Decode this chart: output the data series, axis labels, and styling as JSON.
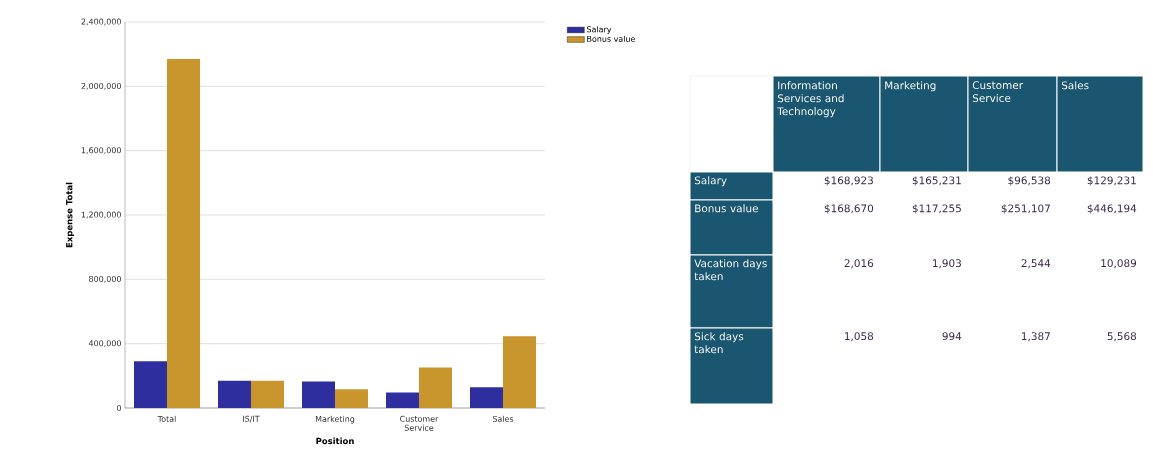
{
  "chart_data": [
    {
      "type": "bar",
      "xlabel": "Position",
      "ylabel": "Expense Total",
      "categories": [
        "Total",
        "IS/IT",
        "Marketing",
        "Customer Service",
        "Sales"
      ],
      "series": [
        {
          "name": "Salary",
          "color": "#2e2e9e",
          "values": [
            290000,
            168923,
            165231,
            96538,
            129231
          ]
        },
        {
          "name": "Bonus value",
          "color": "#c9962e",
          "values": [
            2170000,
            168670,
            117255,
            251107,
            446194
          ]
        }
      ],
      "ylim": [
        0,
        2400000
      ],
      "yticks": [
        0,
        {
          "value": 400000,
          "label": "400,000"
        },
        {
          "value": 800000,
          "label": "800,000"
        },
        {
          "value": 1200000,
          "label": "1,200,000"
        },
        {
          "value": 1600000,
          "label": "1,600,000"
        },
        {
          "value": 2000000,
          "label": "2,000,000"
        },
        {
          "value": 2400000,
          "label": "2,400,000"
        }
      ],
      "grid": "y",
      "legend": "right"
    },
    {
      "type": "other",
      "categories": [
        "Information Services and Technology",
        "Marketing",
        "Customer Service",
        "Sales"
      ],
      "y_categories": [
        "Salary",
        "Bonus value",
        "Vacation days taken",
        "Sick days taken"
      ],
      "cell_labels": [
        [
          "$168,923",
          "$165,231",
          "$96,538",
          "$129,231"
        ],
        [
          "$168,670",
          "$117,255",
          "$251,107",
          "$446,194"
        ],
        [
          "2,016",
          "1,903",
          "2,544",
          "10,089"
        ],
        [
          "1,058",
          "994",
          "1,387",
          "5,568"
        ]
      ]
    }
  ]
}
